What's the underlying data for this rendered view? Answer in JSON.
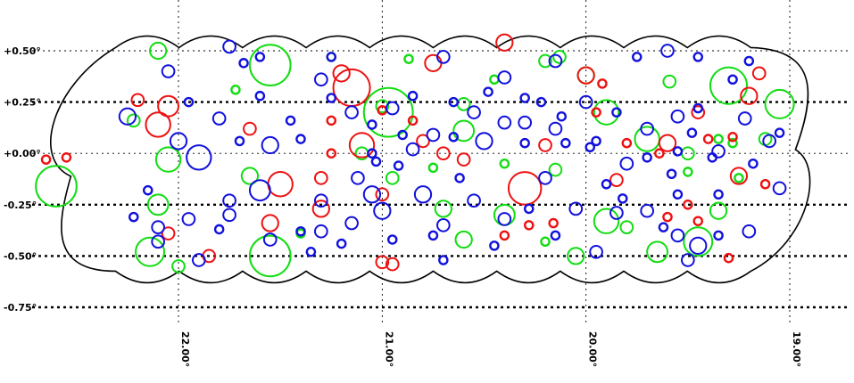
{
  "chart_data": {
    "type": "scatter",
    "title": "",
    "xlabel": "",
    "ylabel": "",
    "x_reversed": true,
    "xlim": [
      22.85,
      18.1
    ],
    "ylim": [
      -0.86,
      0.66
    ],
    "grid": "dotted",
    "x_ticks": [
      {
        "value": 22.0,
        "label": "22.00°"
      },
      {
        "value": 21.0,
        "label": "21.00°"
      },
      {
        "value": 20.0,
        "label": "20.00°"
      },
      {
        "value": 19.0,
        "label": "19.00°"
      }
    ],
    "y_ticks": [
      {
        "value": 0.5,
        "label": "+0.50°"
      },
      {
        "value": 0.25,
        "label": "+0.25°"
      },
      {
        "value": 0.0,
        "label": "+0.00°"
      },
      {
        "value": -0.25,
        "label": "-0.25°"
      },
      {
        "value": -0.5,
        "label": "-0.50°"
      },
      {
        "value": -0.75,
        "label": "-0.75°"
      }
    ],
    "footprint": {
      "ra_range": [
        18.95,
        22.55
      ],
      "dec_range": [
        -0.6,
        0.55
      ]
    },
    "colors": {
      "red": "#ee1111",
      "green": "#11dd11",
      "blue": "#1111dd",
      "outline": "#000000"
    },
    "series": [
      {
        "color": "green",
        "points": [
          [
            22.1,
            0.5,
            0.04
          ],
          [
            21.55,
            0.43,
            0.1
          ],
          [
            21.25,
            0.47,
            0.02
          ],
          [
            20.0,
            0.38,
            0.04
          ],
          [
            20.2,
            0.45,
            0.03
          ],
          [
            19.3,
            0.33,
            0.09
          ],
          [
            19.05,
            0.24,
            0.07
          ],
          [
            22.22,
            0.16,
            0.03
          ],
          [
            21.0,
            0.23,
            0.03
          ],
          [
            20.6,
            0.11,
            0.05
          ],
          [
            20.6,
            0.24,
            0.03
          ],
          [
            19.35,
            0.07,
            0.02
          ],
          [
            19.28,
            0.05,
            0.02
          ],
          [
            19.12,
            0.07,
            0.03
          ],
          [
            22.6,
            -0.16,
            0.1
          ],
          [
            22.05,
            -0.03,
            0.06
          ],
          [
            21.65,
            -0.11,
            0.04
          ],
          [
            21.1,
            0.0,
            0.03
          ],
          [
            20.95,
            -0.12,
            0.03
          ],
          [
            20.75,
            -0.07,
            0.02
          ],
          [
            20.4,
            -0.05,
            0.02
          ],
          [
            20.15,
            -0.08,
            0.03
          ],
          [
            19.9,
            0.2,
            0.06
          ],
          [
            19.7,
            0.07,
            0.06
          ],
          [
            19.5,
            0.0,
            0.03
          ],
          [
            19.5,
            -0.09,
            0.02
          ],
          [
            19.25,
            -0.12,
            0.02
          ],
          [
            22.1,
            -0.25,
            0.05
          ],
          [
            21.55,
            -0.5,
            0.1
          ],
          [
            21.4,
            -0.39,
            0.02
          ],
          [
            20.7,
            -0.27,
            0.04
          ],
          [
            20.6,
            -0.42,
            0.04
          ],
          [
            20.4,
            -0.3,
            0.05
          ],
          [
            20.2,
            -0.43,
            0.02
          ],
          [
            19.9,
            -0.33,
            0.06
          ],
          [
            19.8,
            -0.36,
            0.03
          ],
          [
            19.65,
            -0.48,
            0.05
          ],
          [
            19.45,
            -0.43,
            0.07
          ],
          [
            19.35,
            -0.28,
            0.04
          ],
          [
            21.72,
            0.31,
            0.02
          ],
          [
            22.14,
            -0.48,
            0.07
          ],
          [
            22.0,
            -0.55,
            0.03
          ],
          [
            20.05,
            -0.5,
            0.04
          ],
          [
            20.13,
            0.47,
            0.03
          ],
          [
            19.59,
            0.35,
            0.03
          ],
          [
            20.45,
            0.36,
            0.02
          ],
          [
            20.87,
            0.46,
            0.02
          ],
          [
            20.97,
            0.2,
            0.12
          ]
        ]
      },
      {
        "color": "red",
        "points": [
          [
            21.2,
            0.39,
            0.04
          ],
          [
            21.15,
            0.32,
            0.09
          ],
          [
            20.75,
            0.44,
            0.04
          ],
          [
            20.4,
            0.54,
            0.04
          ],
          [
            22.2,
            0.26,
            0.03
          ],
          [
            22.1,
            0.14,
            0.06
          ],
          [
            22.05,
            0.23,
            0.05
          ],
          [
            21.65,
            0.12,
            0.03
          ],
          [
            21.25,
            0.16,
            0.02
          ],
          [
            21.0,
            0.21,
            0.02
          ],
          [
            22.65,
            -0.03,
            0.02
          ],
          [
            22.55,
            -0.02,
            0.02
          ],
          [
            21.5,
            -0.15,
            0.06
          ],
          [
            21.3,
            -0.12,
            0.03
          ],
          [
            21.1,
            0.04,
            0.06
          ],
          [
            21.0,
            -0.2,
            0.03
          ],
          [
            20.8,
            0.06,
            0.03
          ],
          [
            20.6,
            -0.03,
            0.03
          ],
          [
            20.3,
            -0.17,
            0.08
          ],
          [
            20.2,
            0.04,
            0.03
          ],
          [
            20.0,
            0.38,
            0.04
          ],
          [
            19.95,
            0.2,
            0.02
          ],
          [
            19.8,
            0.05,
            0.02
          ],
          [
            19.6,
            0.05,
            0.04
          ],
          [
            19.45,
            0.2,
            0.03
          ],
          [
            19.4,
            0.07,
            0.02
          ],
          [
            19.2,
            0.28,
            0.04
          ],
          [
            19.15,
            0.39,
            0.03
          ],
          [
            19.25,
            -0.11,
            0.04
          ],
          [
            19.12,
            -0.15,
            0.02
          ],
          [
            22.05,
            -0.39,
            0.03
          ],
          [
            21.85,
            -0.5,
            0.03
          ],
          [
            21.55,
            -0.34,
            0.04
          ],
          [
            21.3,
            -0.27,
            0.04
          ],
          [
            21.0,
            -0.53,
            0.03
          ],
          [
            20.95,
            -0.54,
            0.03
          ],
          [
            20.4,
            -0.4,
            0.02
          ],
          [
            20.28,
            -0.35,
            0.02
          ],
          [
            20.16,
            -0.34,
            0.02
          ],
          [
            19.6,
            -0.31,
            0.02
          ],
          [
            19.45,
            -0.33,
            0.02
          ],
          [
            19.3,
            -0.51,
            0.02
          ],
          [
            20.7,
            0.0,
            0.03
          ],
          [
            19.92,
            0.34,
            0.02
          ],
          [
            20.85,
            0.16,
            0.02
          ],
          [
            21.25,
            0.0,
            0.02
          ],
          [
            19.64,
            0.0,
            0.02
          ],
          [
            19.28,
            0.08,
            0.02
          ],
          [
            19.85,
            -0.13,
            0.03
          ],
          [
            19.5,
            -0.25,
            0.02
          ]
        ]
      },
      {
        "color": "blue",
        "points": [
          [
            21.75,
            0.52,
            0.03
          ],
          [
            21.6,
            0.47,
            0.02
          ],
          [
            21.25,
            0.47,
            0.02
          ],
          [
            20.7,
            0.47,
            0.03
          ],
          [
            20.4,
            0.37,
            0.03
          ],
          [
            20.15,
            0.45,
            0.03
          ],
          [
            19.75,
            0.47,
            0.02
          ],
          [
            19.6,
            0.5,
            0.03
          ],
          [
            19.45,
            0.47,
            0.02
          ],
          [
            22.05,
            0.4,
            0.03
          ],
          [
            21.6,
            0.28,
            0.02
          ],
          [
            21.3,
            0.36,
            0.03
          ],
          [
            21.25,
            0.27,
            0.02
          ],
          [
            21.15,
            0.2,
            0.03
          ],
          [
            20.95,
            0.22,
            0.03
          ],
          [
            20.85,
            0.28,
            0.02
          ],
          [
            20.75,
            0.09,
            0.03
          ],
          [
            20.55,
            0.2,
            0.03
          ],
          [
            20.4,
            0.15,
            0.03
          ],
          [
            20.3,
            0.15,
            0.03
          ],
          [
            20.0,
            0.25,
            0.03
          ],
          [
            19.85,
            0.2,
            0.02
          ],
          [
            19.7,
            0.12,
            0.03
          ],
          [
            19.55,
            0.18,
            0.03
          ],
          [
            19.45,
            0.22,
            0.02
          ],
          [
            19.22,
            0.17,
            0.03
          ],
          [
            19.05,
            0.1,
            0.02
          ],
          [
            22.25,
            0.18,
            0.04
          ],
          [
            22.0,
            0.06,
            0.04
          ],
          [
            21.8,
            0.17,
            0.03
          ],
          [
            21.55,
            0.04,
            0.04
          ],
          [
            21.05,
            0.0,
            0.02
          ],
          [
            20.85,
            0.02,
            0.03
          ],
          [
            20.65,
            0.08,
            0.02
          ],
          [
            20.5,
            0.06,
            0.04
          ],
          [
            20.3,
            0.05,
            0.02
          ],
          [
            20.15,
            0.12,
            0.03
          ],
          [
            19.95,
            0.06,
            0.02
          ],
          [
            19.7,
            -0.02,
            0.02
          ],
          [
            19.55,
            0.01,
            0.02
          ],
          [
            19.35,
            0.01,
            0.03
          ],
          [
            19.18,
            -0.05,
            0.02
          ],
          [
            19.1,
            0.06,
            0.03
          ],
          [
            21.9,
            -0.02,
            0.06
          ],
          [
            21.75,
            -0.23,
            0.03
          ],
          [
            21.6,
            -0.18,
            0.05
          ],
          [
            21.3,
            -0.23,
            0.03
          ],
          [
            21.05,
            -0.2,
            0.04
          ],
          [
            20.8,
            -0.2,
            0.04
          ],
          [
            20.55,
            -0.23,
            0.03
          ],
          [
            20.2,
            -0.12,
            0.03
          ],
          [
            19.9,
            -0.15,
            0.02
          ],
          [
            19.8,
            -0.05,
            0.03
          ],
          [
            19.55,
            -0.2,
            0.02
          ],
          [
            19.35,
            -0.2,
            0.02
          ],
          [
            19.05,
            -0.17,
            0.03
          ],
          [
            22.15,
            -0.18,
            0.02
          ],
          [
            22.1,
            -0.36,
            0.03
          ],
          [
            21.95,
            -0.32,
            0.03
          ],
          [
            21.75,
            -0.3,
            0.03
          ],
          [
            21.55,
            -0.42,
            0.03
          ],
          [
            21.3,
            -0.38,
            0.03
          ],
          [
            21.15,
            -0.34,
            0.03
          ],
          [
            21.0,
            -0.28,
            0.04
          ],
          [
            20.7,
            -0.35,
            0.03
          ],
          [
            20.4,
            -0.32,
            0.03
          ],
          [
            20.05,
            -0.27,
            0.03
          ],
          [
            19.85,
            -0.29,
            0.03
          ],
          [
            19.7,
            -0.28,
            0.03
          ],
          [
            19.55,
            -0.4,
            0.03
          ],
          [
            19.45,
            -0.45,
            0.04
          ],
          [
            19.35,
            -0.4,
            0.02
          ],
          [
            19.2,
            -0.38,
            0.03
          ],
          [
            22.1,
            -0.43,
            0.03
          ],
          [
            21.9,
            -0.52,
            0.03
          ],
          [
            21.4,
            -0.38,
            0.02
          ],
          [
            21.2,
            -0.44,
            0.02
          ],
          [
            20.95,
            -0.42,
            0.02
          ],
          [
            20.7,
            -0.52,
            0.02
          ],
          [
            20.45,
            -0.45,
            0.02
          ],
          [
            20.15,
            -0.4,
            0.02
          ],
          [
            19.95,
            -0.48,
            0.03
          ],
          [
            19.5,
            -0.52,
            0.03
          ],
          [
            21.68,
            0.44,
            0.02
          ],
          [
            21.45,
            0.16,
            0.02
          ],
          [
            21.05,
            0.14,
            0.02
          ],
          [
            20.65,
            0.25,
            0.02
          ],
          [
            20.12,
            0.18,
            0.02
          ],
          [
            20.92,
            -0.06,
            0.02
          ],
          [
            20.62,
            -0.12,
            0.02
          ],
          [
            19.58,
            -0.1,
            0.02
          ],
          [
            19.48,
            0.1,
            0.02
          ],
          [
            22.22,
            -0.31,
            0.02
          ],
          [
            21.95,
            0.25,
            0.02
          ],
          [
            21.7,
            0.06,
            0.02
          ],
          [
            21.8,
            -0.37,
            0.02
          ],
          [
            21.35,
            -0.48,
            0.02
          ],
          [
            21.12,
            -0.12,
            0.03
          ],
          [
            21.03,
            -0.04,
            0.02
          ],
          [
            20.9,
            0.09,
            0.02
          ],
          [
            20.48,
            0.3,
            0.02
          ],
          [
            20.3,
            0.27,
            0.02
          ],
          [
            20.22,
            0.25,
            0.02
          ],
          [
            19.98,
            0.03,
            0.02
          ],
          [
            19.82,
            -0.22,
            0.02
          ],
          [
            19.62,
            -0.36,
            0.02
          ],
          [
            19.28,
            0.36,
            0.02
          ],
          [
            19.2,
            0.45,
            0.02
          ],
          [
            20.75,
            -0.4,
            0.02
          ],
          [
            20.28,
            -0.27,
            0.02
          ],
          [
            21.4,
            0.07,
            0.02
          ],
          [
            20.1,
            0.05,
            0.02
          ],
          [
            19.38,
            -0.02,
            0.02
          ]
        ]
      }
    ]
  }
}
